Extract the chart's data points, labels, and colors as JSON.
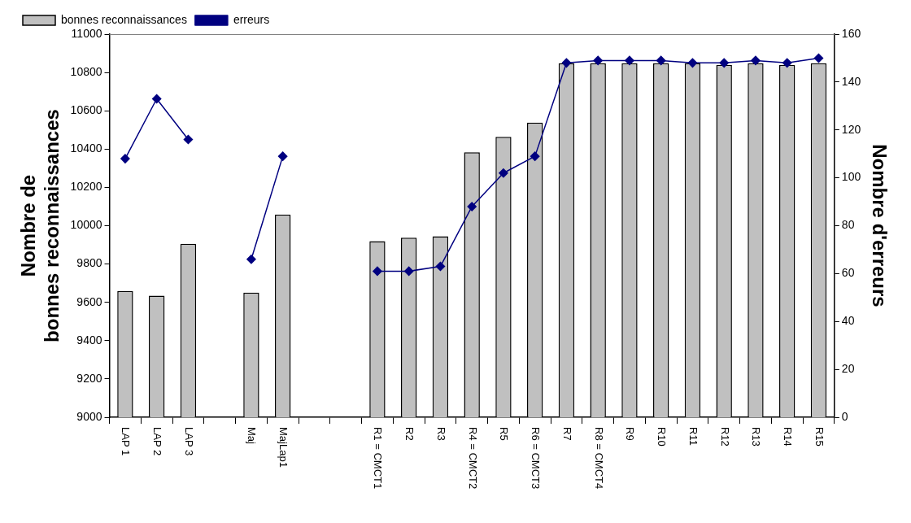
{
  "chart_data": {
    "type": "bar",
    "categories": [
      "LAP 1",
      "LAP 2",
      "LAP 3",
      null,
      "Maj",
      "MajLap1",
      null,
      null,
      "R1 = CMCT1",
      "R2",
      "R3",
      "R4 = CMCT2",
      "R5",
      "R6 = CMCT3",
      "R7",
      "R8 = CMCT4",
      "R9",
      "R10",
      "R11",
      "R12",
      "R13",
      "R14",
      "R15"
    ],
    "ylabel": "Nombre de\nbonnes reconnaissances",
    "y2label": "Nombre d'erreurs",
    "series": [
      {
        "name": "bonnes reconnaissances",
        "color": "#c0c0c0",
        "values": [
          9659,
          9635,
          9905,
          null,
          9651,
          10058,
          null,
          null,
          9919,
          9937,
          9945,
          10383,
          10464,
          10538,
          10848,
          10848,
          10848,
          10848,
          10848,
          10840,
          10848,
          10840,
          10848
        ]
      },
      {
        "name": "erreurs",
        "type": "line",
        "axis": "y2",
        "color": "#000080",
        "values": [
          108,
          133,
          116,
          null,
          66,
          109,
          null,
          null,
          61,
          61,
          63,
          88,
          102,
          109,
          148,
          149,
          149,
          149,
          148,
          148,
          149,
          148,
          150
        ]
      }
    ],
    "ylim": [
      9000,
      11000
    ],
    "yticks": [
      9000,
      9200,
      9400,
      9600,
      9800,
      10000,
      10200,
      10400,
      10600,
      10800,
      11000
    ],
    "y2lim": [
      0,
      160
    ],
    "y2ticks": [
      0,
      20,
      40,
      60,
      80,
      100,
      120,
      140,
      160
    ],
    "grid": false,
    "legend": "top left",
    "marker": "diamond",
    "line_style": "solid"
  }
}
